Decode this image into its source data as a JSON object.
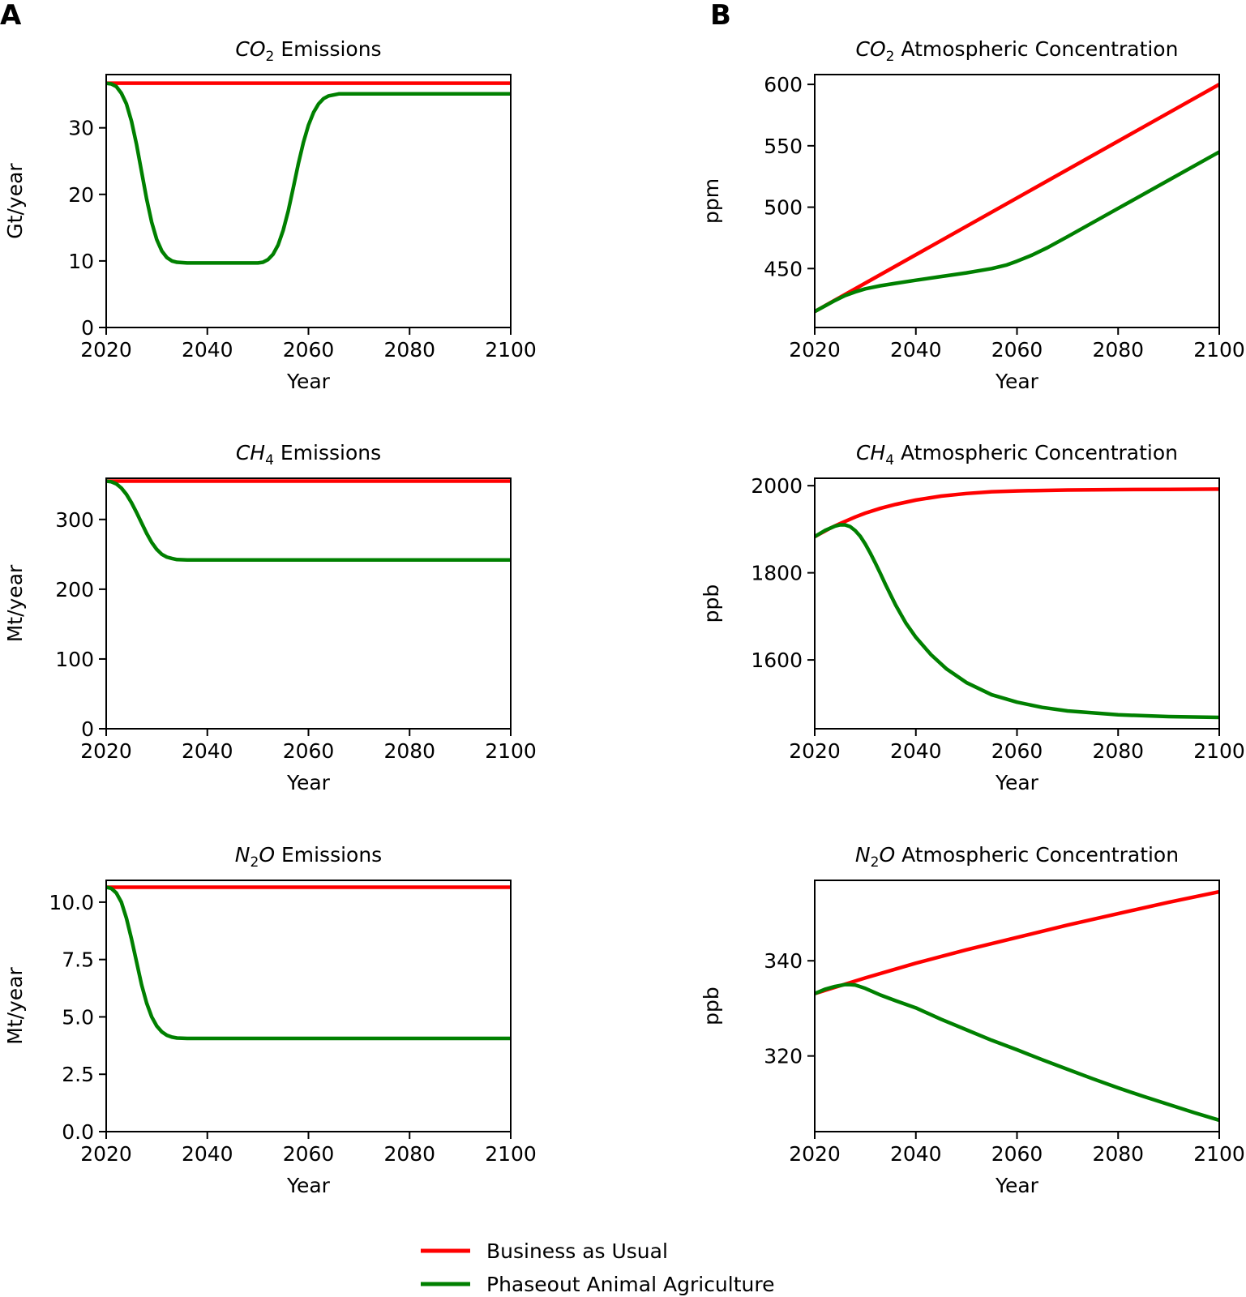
{
  "panel_letters": [
    "A",
    "B"
  ],
  "legend": [
    {
      "label": "Business as Usual",
      "color": "#ff0000"
    },
    {
      "label": "Phaseout Animal Agriculture",
      "color": "#008000"
    }
  ],
  "chart_data": [
    {
      "type": "line",
      "panel": "A",
      "title_sym": "CO",
      "title_sub": "2",
      "title_rest": " Emissions",
      "xlabel": "Year",
      "ylabel": "Gt/year",
      "xlim": [
        2020,
        2100
      ],
      "ylim": [
        0,
        38
      ],
      "xticks": [
        2020,
        2040,
        2060,
        2080,
        2100
      ],
      "yticks": [
        0,
        10,
        20,
        30
      ],
      "ytick_labels": [
        "0",
        "10",
        "20",
        "30"
      ],
      "series": [
        {
          "name": "Business as Usual",
          "color": "#ff0000",
          "x": [
            2020,
            2100
          ],
          "y": [
            36.7,
            36.7
          ]
        },
        {
          "name": "Phaseout Animal Agriculture",
          "color": "#008000",
          "x": [
            2020,
            2021,
            2022,
            2023,
            2024,
            2025,
            2026,
            2027,
            2028,
            2029,
            2030,
            2031,
            2032,
            2033,
            2034,
            2036,
            2050,
            2051,
            2052,
            2053,
            2054,
            2055,
            2056,
            2057,
            2058,
            2059,
            2060,
            2061,
            2062,
            2063,
            2064,
            2066,
            2100
          ],
          "y": [
            36.7,
            36.6,
            36.2,
            35.2,
            33.6,
            31.0,
            27.5,
            23.4,
            19.3,
            15.8,
            13.2,
            11.5,
            10.5,
            10.0,
            9.8,
            9.7,
            9.7,
            9.8,
            10.2,
            11.0,
            12.4,
            14.6,
            17.5,
            21.0,
            24.6,
            27.8,
            30.4,
            32.3,
            33.6,
            34.4,
            34.8,
            35.1,
            35.1
          ]
        }
      ]
    },
    {
      "type": "line",
      "panel": "B",
      "title_sym": "CO",
      "title_sub": "2",
      "title_rest": " Atmospheric Concentration",
      "xlabel": "Year",
      "ylabel": "ppm",
      "xlim": [
        2020,
        2100
      ],
      "ylim": [
        402,
        608
      ],
      "xticks": [
        2020,
        2040,
        2060,
        2080,
        2100
      ],
      "yticks": [
        450,
        500,
        550,
        600
      ],
      "ytick_labels": [
        "450",
        "500",
        "550",
        "600"
      ],
      "series": [
        {
          "name": "Business as Usual",
          "color": "#ff0000",
          "x": [
            2020,
            2100
          ],
          "y": [
            415,
            600
          ]
        },
        {
          "name": "Phaseout Animal Agriculture",
          "color": "#008000",
          "x": [
            2020,
            2022,
            2024,
            2026,
            2028,
            2030,
            2033,
            2036,
            2040,
            2045,
            2050,
            2055,
            2058,
            2060,
            2063,
            2066,
            2070,
            2080,
            2090,
            2100
          ],
          "y": [
            415,
            419.5,
            424,
            428,
            431,
            433.5,
            436,
            438,
            440.5,
            443.5,
            446.5,
            450,
            453,
            456,
            461,
            467,
            476,
            499,
            522,
            545
          ]
        }
      ]
    },
    {
      "type": "line",
      "panel": "A",
      "title_sym": "CH",
      "title_sub": "4",
      "title_rest": " Emissions",
      "xlabel": "Year",
      "ylabel": "Mt/year",
      "xlim": [
        2020,
        2100
      ],
      "ylim": [
        0,
        359
      ],
      "xticks": [
        2020,
        2040,
        2060,
        2080,
        2100
      ],
      "yticks": [
        0,
        100,
        200,
        300
      ],
      "ytick_labels": [
        "0",
        "100",
        "200",
        "300"
      ],
      "series": [
        {
          "name": "Business as Usual",
          "color": "#ff0000",
          "x": [
            2020,
            2100
          ],
          "y": [
            355,
            355
          ]
        },
        {
          "name": "Phaseout Animal Agriculture",
          "color": "#008000",
          "x": [
            2020,
            2021,
            2022,
            2023,
            2024,
            2025,
            2026,
            2027,
            2028,
            2029,
            2030,
            2031,
            2032,
            2033,
            2034,
            2036,
            2100
          ],
          "y": [
            355,
            354,
            351,
            345,
            336,
            324,
            310,
            295,
            280,
            267,
            257,
            250,
            246,
            244,
            242.5,
            242,
            242
          ]
        }
      ]
    },
    {
      "type": "line",
      "panel": "B",
      "title_sym": "CH",
      "title_sub": "4",
      "title_rest": " Atmospheric Concentration",
      "xlabel": "Year",
      "ylabel": "ppb",
      "xlim": [
        2020,
        2100
      ],
      "ylim": [
        1442,
        2017
      ],
      "xticks": [
        2020,
        2040,
        2060,
        2080,
        2100
      ],
      "yticks": [
        1600,
        1800,
        2000
      ],
      "ytick_labels": [
        "1600",
        "1800",
        "2000"
      ],
      "series": [
        {
          "name": "Business as Usual",
          "color": "#ff0000",
          "x": [
            2020,
            2023,
            2025,
            2028,
            2030,
            2033,
            2036,
            2040,
            2045,
            2050,
            2055,
            2060,
            2070,
            2080,
            2090,
            2100
          ],
          "y": [
            1883,
            1902,
            1913,
            1928,
            1937,
            1948,
            1957,
            1967,
            1976,
            1982,
            1986,
            1988,
            1990,
            1991,
            1991.5,
            1992
          ]
        },
        {
          "name": "Phaseout Animal Agriculture",
          "color": "#008000",
          "x": [
            2020,
            2022,
            2024,
            2025,
            2026,
            2027,
            2028,
            2029,
            2030,
            2031,
            2032,
            2033,
            2034,
            2036,
            2038,
            2040,
            2043,
            2046,
            2050,
            2055,
            2060,
            2065,
            2070,
            2080,
            2090,
            2100
          ],
          "y": [
            1883,
            1897,
            1907,
            1910,
            1910,
            1906,
            1897,
            1884,
            1866,
            1845,
            1822,
            1798,
            1773,
            1726,
            1685,
            1652,
            1612,
            1580,
            1548,
            1520,
            1503,
            1491,
            1483,
            1474,
            1470,
            1468
          ]
        }
      ]
    },
    {
      "type": "line",
      "panel": "A",
      "title_sym": "N",
      "title_sub": "2",
      "title_rest": "O",
      "title_tail": " Emissions",
      "xlabel": "Year",
      "ylabel": "Mt/year",
      "xlim": [
        2020,
        2100
      ],
      "ylim": [
        0,
        10.95
      ],
      "xticks": [
        2020,
        2040,
        2060,
        2080,
        2100
      ],
      "yticks": [
        0,
        2.5,
        5,
        7.5,
        10
      ],
      "ytick_labels": [
        "0.0",
        "2.5",
        "5.0",
        "7.5",
        "10.0"
      ],
      "series": [
        {
          "name": "Business as Usual",
          "color": "#ff0000",
          "x": [
            2020,
            2100
          ],
          "y": [
            10.65,
            10.65
          ]
        },
        {
          "name": "Phaseout Animal Agriculture",
          "color": "#008000",
          "x": [
            2020,
            2021,
            2022,
            2023,
            2024,
            2025,
            2026,
            2027,
            2028,
            2029,
            2030,
            2031,
            2032,
            2033,
            2034,
            2036,
            2100
          ],
          "y": [
            10.65,
            10.6,
            10.4,
            10.0,
            9.3,
            8.4,
            7.4,
            6.4,
            5.6,
            5.0,
            4.6,
            4.35,
            4.2,
            4.12,
            4.08,
            4.06,
            4.06
          ]
        }
      ]
    },
    {
      "type": "line",
      "panel": "B",
      "title_sym": "N",
      "title_sub": "2",
      "title_rest": "O",
      "title_tail": " Atmospheric Concentration",
      "xlabel": "Year",
      "ylabel": "ppb",
      "xlim": [
        2020,
        2100
      ],
      "ylim": [
        304.1,
        356.9
      ],
      "xticks": [
        2020,
        2040,
        2060,
        2080,
        2100
      ],
      "yticks": [
        320,
        340
      ],
      "ytick_labels": [
        "320",
        "340"
      ],
      "series": [
        {
          "name": "Business as Usual",
          "color": "#ff0000",
          "x": [
            2020,
            2030,
            2040,
            2050,
            2060,
            2070,
            2080,
            2090,
            2100
          ],
          "y": [
            333.1,
            336.4,
            339.5,
            342.3,
            344.9,
            347.5,
            349.9,
            352.3,
            354.5
          ]
        },
        {
          "name": "Phaseout Animal Agriculture",
          "color": "#008000",
          "x": [
            2020,
            2022,
            2024,
            2026,
            2027,
            2028,
            2030,
            2033,
            2036,
            2040,
            2045,
            2050,
            2055,
            2060,
            2065,
            2070,
            2075,
            2080,
            2085,
            2090,
            2095,
            2100
          ],
          "y": [
            333.1,
            334.0,
            334.6,
            335.0,
            335.0,
            334.9,
            334.2,
            332.8,
            331.6,
            330.1,
            327.7,
            325.5,
            323.3,
            321.3,
            319.2,
            317.2,
            315.2,
            313.3,
            311.5,
            309.8,
            308.1,
            306.5
          ]
        }
      ]
    }
  ]
}
